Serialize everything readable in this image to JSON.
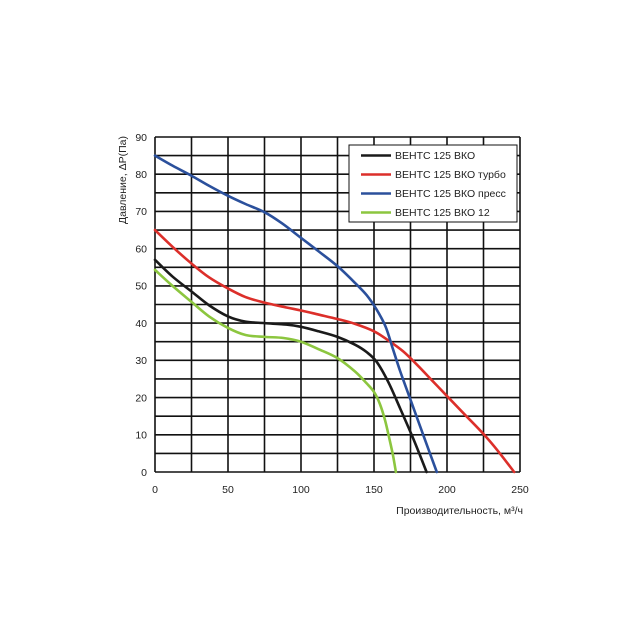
{
  "chart_data": {
    "type": "line",
    "xlabel": "Производительность, м³/ч",
    "ylabel": "Давление, ΔP(Па)",
    "xlim": [
      0,
      250
    ],
    "ylim": [
      0,
      90
    ],
    "xticks": [
      0,
      50,
      100,
      150,
      200,
      250
    ],
    "yticks": [
      0,
      10,
      20,
      30,
      40,
      50,
      60,
      70,
      80,
      90
    ],
    "grid": true,
    "legend": "top-right",
    "series": [
      {
        "name": "ВЕНТС 125 ВКО",
        "color": "#1a1a1a",
        "points": [
          [
            0,
            57
          ],
          [
            12,
            52.5
          ],
          [
            25,
            48.5
          ],
          [
            37,
            44.8
          ],
          [
            50,
            41.8
          ],
          [
            62,
            40.4
          ],
          [
            75,
            40
          ],
          [
            90,
            39.6
          ],
          [
            100,
            39
          ],
          [
            112,
            37.8
          ],
          [
            125,
            36.3
          ],
          [
            137,
            34.2
          ],
          [
            145,
            32.2
          ],
          [
            152,
            29.5
          ],
          [
            160,
            24
          ],
          [
            168,
            17
          ],
          [
            176,
            9.8
          ],
          [
            182,
            4
          ],
          [
            186,
            0
          ]
        ]
      },
      {
        "name": "ВЕНТС 125 ВКО турбо",
        "color": "#dc2f2a",
        "points": [
          [
            0,
            65
          ],
          [
            12,
            60.5
          ],
          [
            25,
            56
          ],
          [
            37,
            52.3
          ],
          [
            50,
            49.3
          ],
          [
            62,
            47
          ],
          [
            75,
            45.5
          ],
          [
            90,
            44.2
          ],
          [
            100,
            43.4
          ],
          [
            112,
            42.3
          ],
          [
            125,
            41.1
          ],
          [
            137,
            39.8
          ],
          [
            150,
            37.8
          ],
          [
            160,
            35.3
          ],
          [
            170,
            32.4
          ],
          [
            180,
            28.6
          ],
          [
            190,
            24.5
          ],
          [
            200,
            20.4
          ],
          [
            212,
            15.5
          ],
          [
            225,
            10.2
          ],
          [
            235,
            5.6
          ],
          [
            246,
            0
          ]
        ]
      },
      {
        "name": "ВЕНТС 125 ВКО пресс",
        "color": "#2b509c",
        "points": [
          [
            0,
            85
          ],
          [
            12,
            82.3
          ],
          [
            25,
            79.6
          ],
          [
            37,
            76.9
          ],
          [
            50,
            74.2
          ],
          [
            62,
            72
          ],
          [
            75,
            69.8
          ],
          [
            87,
            66.8
          ],
          [
            100,
            62.9
          ],
          [
            112,
            59.3
          ],
          [
            125,
            55.3
          ],
          [
            137,
            50.8
          ],
          [
            145,
            47.5
          ],
          [
            152,
            43.5
          ],
          [
            158,
            39
          ],
          [
            163,
            33
          ],
          [
            168,
            27
          ],
          [
            174,
            20.5
          ],
          [
            180,
            14
          ],
          [
            186,
            7.5
          ],
          [
            193,
            0
          ]
        ]
      },
      {
        "name": "ВЕНТС 125 ВКО 12",
        "color": "#8cc63f",
        "points": [
          [
            0,
            54.3
          ],
          [
            12,
            50
          ],
          [
            25,
            45.7
          ],
          [
            37,
            41.8
          ],
          [
            50,
            38.7
          ],
          [
            62,
            36.8
          ],
          [
            75,
            36.3
          ],
          [
            88,
            36
          ],
          [
            100,
            35
          ],
          [
            112,
            33
          ],
          [
            125,
            30.6
          ],
          [
            137,
            27
          ],
          [
            145,
            23.8
          ],
          [
            150,
            21.5
          ],
          [
            154,
            18.3
          ],
          [
            157.5,
            14
          ],
          [
            160.5,
            9
          ],
          [
            163,
            4.5
          ],
          [
            165,
            0
          ]
        ]
      }
    ]
  }
}
